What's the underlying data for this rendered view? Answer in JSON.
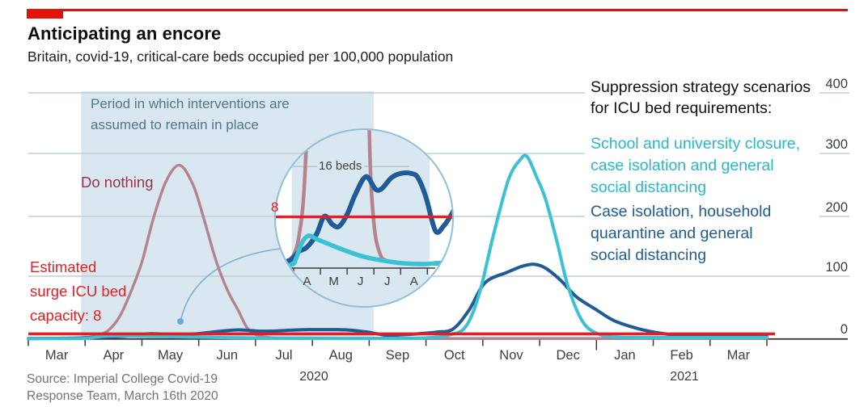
{
  "header": {
    "title": "Anticipating an encore",
    "subtitle": "Britain, covid-19, critical-care beds occupied per 100,000 population"
  },
  "annotations": {
    "intervention_period_lines": [
      "Period in which interventions are",
      "assumed to remain in place"
    ],
    "do_nothing_label": "Do nothing",
    "capacity_lines": [
      "Estimated",
      "surge ICU bed",
      "capacity: 8"
    ],
    "inset_16beds_label": "16 beds",
    "inset_8_label": "8"
  },
  "legend": {
    "heading_lines": [
      "Suppression strategy scenarios",
      "for ICU bed requirements:"
    ],
    "scenario_cyan_lines": [
      "School and university closure,",
      "case isolation and general",
      "social distancing"
    ],
    "scenario_blue_lines": [
      "Case isolation, household",
      "quarantine and general",
      "social distancing"
    ]
  },
  "axis": {
    "months": [
      "Mar",
      "Apr",
      "May",
      "Jun",
      "Jul",
      "Aug",
      "Sep",
      "Oct",
      "Nov",
      "Dec",
      "Jan",
      "Feb",
      "Mar"
    ],
    "years": [
      "2020",
      "2021"
    ],
    "y_ticks": [
      "400",
      "300",
      "200",
      "100",
      "0"
    ],
    "inset_months": [
      "A",
      "M",
      "J",
      "J",
      "A"
    ]
  },
  "source": {
    "lines": [
      "Source: Imperial College Covid-19",
      "Response Team, March 16th 2020"
    ]
  },
  "colors": {
    "brand_red": "#e3120b",
    "capacity_red": "#e81c22",
    "do_nothing_curve": "#b4838f",
    "do_nothing_text": "#9a3449",
    "cyan_curve": "#3bc0d4",
    "cyan_text": "#28b7ce",
    "blue_curve": "#1f5c97",
    "band_blue": "#d9e7f0",
    "gridline": "#c3ced6",
    "axis_dark": "#3a3a3a",
    "annotation_text": "#52768a",
    "source_gray": "#737373",
    "inset_border": "#8fbfda",
    "leader_line": "#7fafd0"
  },
  "chart_data": {
    "type": "line",
    "title": "Anticipating an encore",
    "subtitle": "Britain, covid-19, critical-care beds occupied per 100,000 population",
    "ylabel": "critical-care beds occupied per 100,000 population",
    "ylim": [
      0,
      400
    ],
    "x_unit": "months from March 2020 (0 = Mar 2020, 13 = end Mar 2021)",
    "x_tick_labels": [
      "Mar",
      "Apr",
      "May",
      "Jun",
      "Jul",
      "Aug",
      "Sep",
      "Oct",
      "Nov",
      "Dec",
      "Jan",
      "Feb",
      "Mar"
    ],
    "grid": "horizontal",
    "legend_position": "right",
    "capacity_line": {
      "label": "Estimated surge ICU bed capacity",
      "value": 8
    },
    "intervention_band": {
      "from_month": 0.93,
      "to_month": 6.08
    },
    "series": [
      {
        "name": "Do nothing",
        "color": "#b4838f",
        "points": [
          [
            0,
            0.8
          ],
          [
            0.7,
            1
          ],
          [
            1.0,
            2
          ],
          [
            1.2,
            5
          ],
          [
            1.4,
            13
          ],
          [
            1.6,
            35
          ],
          [
            1.8,
            75
          ],
          [
            2.0,
            125
          ],
          [
            2.2,
            195
          ],
          [
            2.42,
            255
          ],
          [
            2.66,
            282
          ],
          [
            2.9,
            250
          ],
          [
            3.1,
            192
          ],
          [
            3.3,
            128
          ],
          [
            3.5,
            80
          ],
          [
            3.7,
            45
          ],
          [
            3.85,
            18
          ],
          [
            4.0,
            7
          ],
          [
            4.2,
            2.5
          ],
          [
            4.5,
            1
          ],
          [
            5.5,
            0.6
          ],
          [
            8,
            0.5
          ],
          [
            13,
            0.5
          ]
        ]
      },
      {
        "name": "Case isolation, household quarantine and general social distancing",
        "color": "#1f5c97",
        "points": [
          [
            0,
            0.4
          ],
          [
            0.8,
            1
          ],
          [
            1.2,
            2.5
          ],
          [
            1.5,
            3.2
          ],
          [
            1.85,
            5.2
          ],
          [
            2.15,
            8.1
          ],
          [
            2.45,
            6.8
          ],
          [
            2.7,
            6.5
          ],
          [
            3.0,
            8.4
          ],
          [
            3.3,
            11.5
          ],
          [
            3.7,
            14.4
          ],
          [
            4.06,
            12.4
          ],
          [
            4.3,
            12.5
          ],
          [
            4.65,
            14.2
          ],
          [
            5.0,
            14.9
          ],
          [
            5.4,
            14.9
          ],
          [
            5.65,
            14.2
          ],
          [
            5.95,
            11.1
          ],
          [
            6.3,
            5.8
          ],
          [
            6.6,
            6.5
          ],
          [
            6.9,
            8.4
          ],
          [
            7.2,
            11
          ],
          [
            7.48,
            16
          ],
          [
            7.76,
            47
          ],
          [
            8.04,
            91
          ],
          [
            8.43,
            108
          ],
          [
            8.7,
            118
          ],
          [
            8.9,
            121
          ],
          [
            9.1,
            115
          ],
          [
            9.37,
            95
          ],
          [
            9.65,
            68
          ],
          [
            10.0,
            47
          ],
          [
            10.32,
            29
          ],
          [
            10.75,
            16
          ],
          [
            11.2,
            8
          ],
          [
            11.6,
            5
          ],
          [
            12.2,
            4
          ],
          [
            13,
            4
          ]
        ]
      },
      {
        "name": "School and university closure, case isolation and general social distancing",
        "color": "#3bc0d4",
        "points": [
          [
            0,
            0.3
          ],
          [
            0.9,
            0.4
          ],
          [
            1.1,
            1.5
          ],
          [
            1.3,
            3.8
          ],
          [
            1.55,
            5.0
          ],
          [
            1.9,
            4.4
          ],
          [
            2.3,
            3.7
          ],
          [
            2.9,
            2.7
          ],
          [
            3.6,
            1.7
          ],
          [
            4.3,
            1.1
          ],
          [
            5.2,
            0.6
          ],
          [
            6.2,
            0.6
          ],
          [
            7.0,
            1.5
          ],
          [
            7.4,
            6
          ],
          [
            7.7,
            20
          ],
          [
            7.94,
            74
          ],
          [
            8.19,
            170
          ],
          [
            8.45,
            258
          ],
          [
            8.65,
            290
          ],
          [
            8.78,
            296
          ],
          [
            8.95,
            262
          ],
          [
            9.1,
            228
          ],
          [
            9.3,
            160
          ],
          [
            9.5,
            85
          ],
          [
            9.75,
            29
          ],
          [
            10.0,
            9
          ],
          [
            10.3,
            3
          ],
          [
            10.8,
            2
          ],
          [
            13,
            2
          ]
        ]
      }
    ],
    "inset": {
      "shape": "magnifying circle",
      "x_range_months": [
        1,
        6
      ],
      "x_tick_labels": [
        "A",
        "M",
        "J",
        "J",
        "A"
      ],
      "ref_lines": [
        {
          "label": "16 beds",
          "value": 16
        },
        {
          "label": "8",
          "value": 8
        }
      ]
    }
  }
}
